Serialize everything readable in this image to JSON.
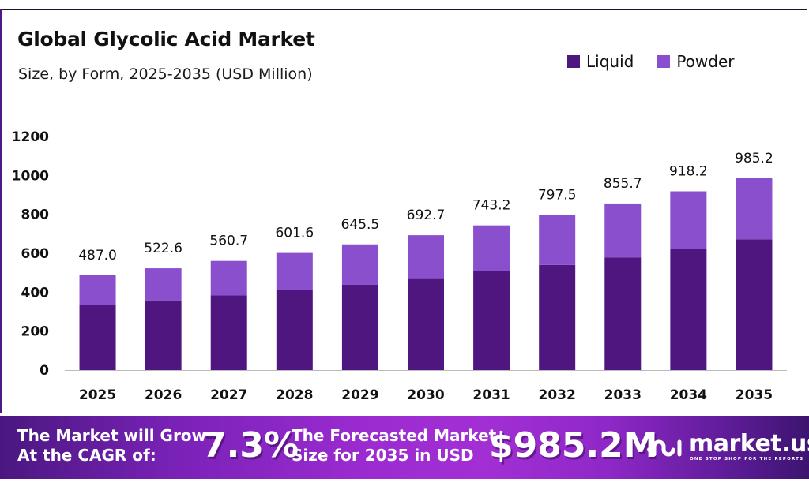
{
  "header": {
    "title": "Global Glycolic Acid Market",
    "subtitle": "Size, by Form, 2025-2035 (USD Million)"
  },
  "legend": [
    {
      "label": "Liquid",
      "color": "#4f1680"
    },
    {
      "label": "Powder",
      "color": "#8a4fcc"
    }
  ],
  "chart_data": {
    "type": "bar",
    "stacked": true,
    "title": "Global Glycolic Acid Market",
    "subtitle": "Size, by Form, 2025-2035 (USD Million)",
    "xlabel": "",
    "ylabel": "",
    "ylim": [
      0,
      1200
    ],
    "yticks": [
      0,
      200,
      400,
      600,
      800,
      1000,
      1200
    ],
    "grid": false,
    "legend_position": "top-right",
    "categories": [
      "2025",
      "2026",
      "2027",
      "2028",
      "2029",
      "2030",
      "2031",
      "2032",
      "2033",
      "2034",
      "2035"
    ],
    "series": [
      {
        "name": "Liquid",
        "color": "#4f1680",
        "values": [
          333,
          358,
          383,
          410,
          438,
          472,
          508,
          540,
          579,
          623,
          672
        ]
      },
      {
        "name": "Powder",
        "color": "#8a4fcc",
        "values": [
          154,
          164.6,
          177.7,
          191.6,
          207.5,
          220.7,
          235.2,
          257.5,
          276.7,
          295.2,
          313.2
        ]
      }
    ],
    "totals": [
      487.0,
      522.6,
      560.7,
      601.6,
      645.5,
      692.7,
      743.2,
      797.5,
      855.7,
      918.2,
      985.2
    ],
    "total_labels": [
      "487.0",
      "522.6",
      "560.7",
      "601.6",
      "645.5",
      "692.7",
      "743.2",
      "797.5",
      "855.7",
      "918.2",
      "985.2"
    ]
  },
  "banner": {
    "cagr_text_line1": "The Market will Grow",
    "cagr_text_line2": "At the CAGR of:",
    "cagr_value": "7.3%",
    "forecast_text_line1": "The Forecasted Market",
    "forecast_text_line2": "Size for 2035 in USD",
    "forecast_value": "$985.2M",
    "logo_name": "market.us",
    "logo_tagline": "ONE STOP SHOP FOR THE REPORTS"
  }
}
